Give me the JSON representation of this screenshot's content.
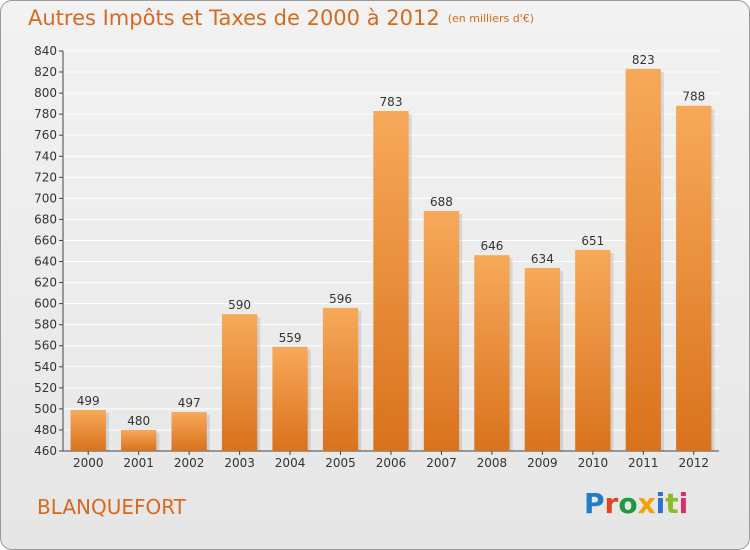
{
  "header": {
    "title": "Autres Impôts et Taxes de 2000 à 2012",
    "subtitle": "(en milliers d'€)"
  },
  "footer": {
    "city": "BLANQUEFORT",
    "logo_text": "Proxiti"
  },
  "colors": {
    "bar_top": "#f7a95a",
    "bar_bottom": "#d9721d",
    "title": "#d9691f",
    "grid": "#ffffff"
  },
  "chart_data": {
    "type": "bar",
    "title": "Autres Impôts et Taxes de 2000 à 2012",
    "subtitle": "(en milliers d'€)",
    "categories": [
      "2000",
      "2001",
      "2002",
      "2003",
      "2004",
      "2005",
      "2006",
      "2007",
      "2008",
      "2009",
      "2010",
      "2011",
      "2012"
    ],
    "values": [
      499,
      480,
      497,
      590,
      559,
      596,
      783,
      688,
      646,
      634,
      651,
      823,
      788
    ],
    "ylim": [
      460,
      840
    ],
    "yticks": [
      460,
      480,
      500,
      520,
      540,
      560,
      580,
      600,
      620,
      640,
      660,
      680,
      700,
      720,
      740,
      760,
      780,
      800,
      820,
      840
    ],
    "grid": true,
    "data_labels": true
  }
}
